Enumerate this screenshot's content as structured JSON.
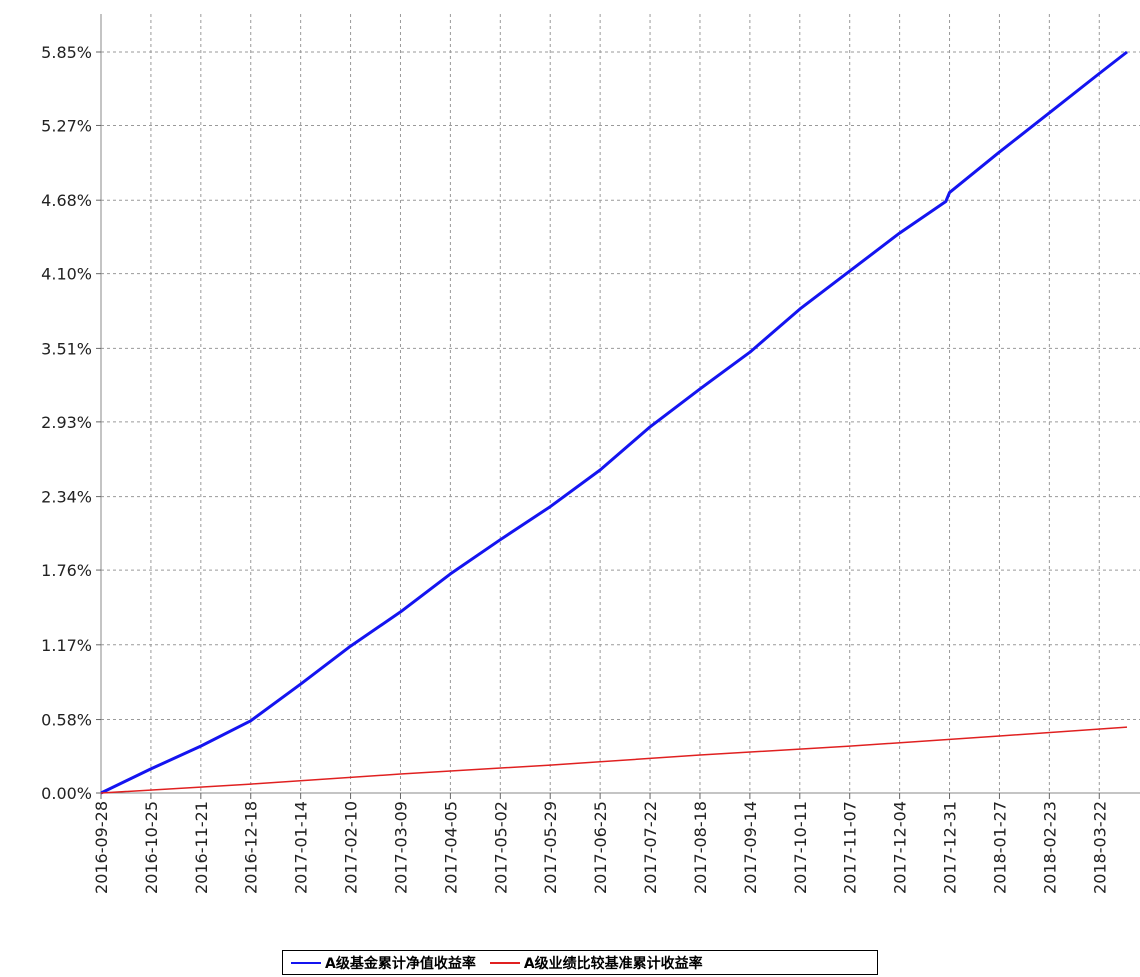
{
  "chart_data": {
    "type": "line",
    "yticks": [
      "0.00%",
      "0.58%",
      "1.17%",
      "1.76%",
      "2.34%",
      "2.93%",
      "3.51%",
      "4.10%",
      "4.68%",
      "5.27%",
      "5.85%"
    ],
    "xticks": [
      "2016-09-28",
      "2016-10-25",
      "2016-11-21",
      "2016-12-18",
      "2017-01-14",
      "2017-02-10",
      "2017-03-09",
      "2017-04-05",
      "2017-05-02",
      "2017-05-29",
      "2017-06-25",
      "2017-07-22",
      "2017-08-18",
      "2017-09-14",
      "2017-10-11",
      "2017-11-07",
      "2017-12-04",
      "2017-12-31",
      "2018-01-27",
      "2018-02-23",
      "2018-03-22"
    ],
    "ylim": [
      0,
      5.85
    ],
    "xlim": [
      "2016-09-28",
      "2018-04-06"
    ],
    "grid": true,
    "legend_position": "bottom",
    "series": [
      {
        "name": "A级基金累计净值收益率",
        "color": "#1414f0",
        "x": [
          "2016-09-28",
          "2016-10-25",
          "2016-11-21",
          "2016-12-18",
          "2017-01-14",
          "2017-02-10",
          "2017-03-09",
          "2017-04-05",
          "2017-05-02",
          "2017-05-29",
          "2017-06-25",
          "2017-07-22",
          "2017-08-18",
          "2017-09-14",
          "2017-10-11",
          "2017-11-07",
          "2017-12-04",
          "2017-12-29",
          "2017-12-31",
          "2018-01-27",
          "2018-02-23",
          "2018-03-22",
          "2018-04-06"
        ],
        "values": [
          0.0,
          0.19,
          0.37,
          0.57,
          0.86,
          1.16,
          1.43,
          1.73,
          2.0,
          2.26,
          2.55,
          2.89,
          3.19,
          3.48,
          3.82,
          4.12,
          4.42,
          4.67,
          4.74,
          5.06,
          5.37,
          5.68,
          5.85
        ]
      },
      {
        "name": "A级业绩比较基准累计收益率",
        "color": "#e02020",
        "x": [
          "2016-09-28",
          "2016-12-18",
          "2017-03-09",
          "2017-05-29",
          "2017-08-18",
          "2017-11-07",
          "2018-01-27",
          "2018-04-06"
        ],
        "values": [
          0.0,
          0.07,
          0.15,
          0.22,
          0.3,
          0.37,
          0.45,
          0.52
        ]
      }
    ]
  },
  "legend": {
    "items": [
      {
        "label": "A级基金累计净值收益率",
        "color": "#1414f0"
      },
      {
        "label": "A级业绩比较基准累计收益率",
        "color": "#e02020"
      }
    ]
  }
}
